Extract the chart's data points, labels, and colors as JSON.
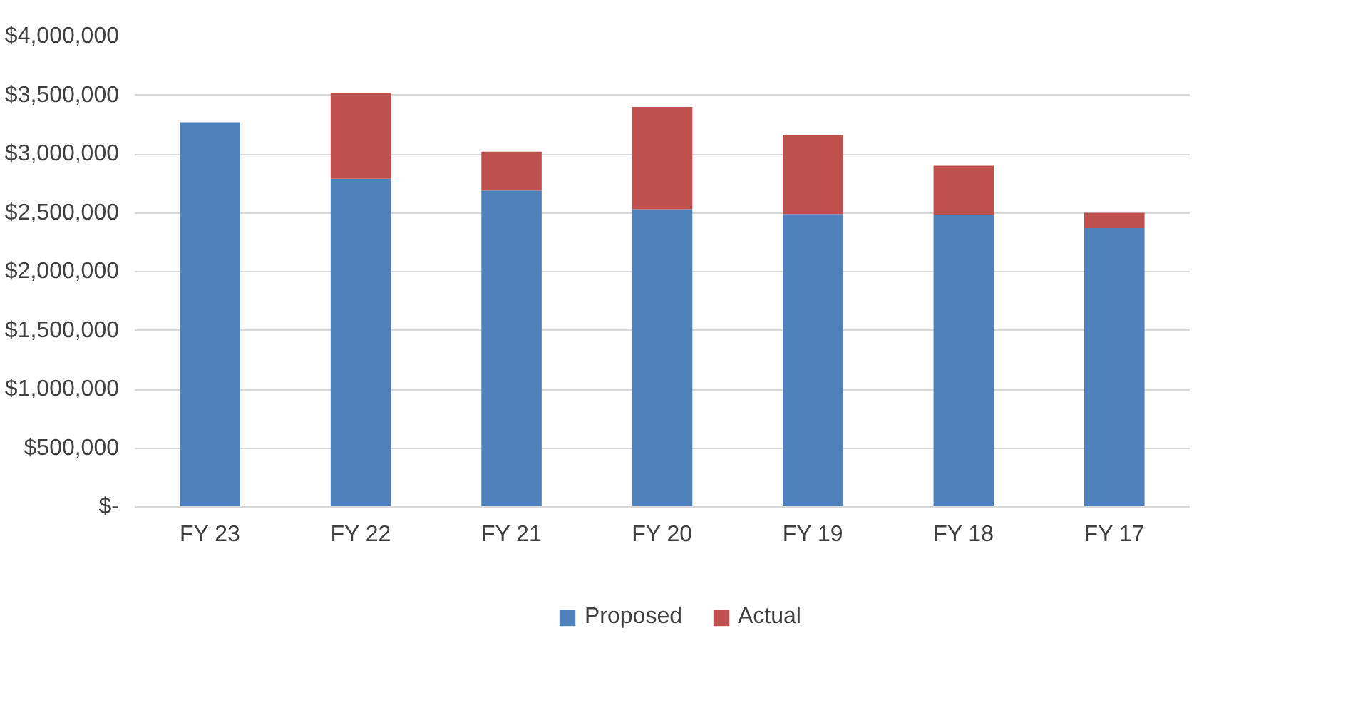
{
  "chart_data": {
    "type": "bar",
    "stacked": true,
    "categories": [
      "FY 23",
      "FY 22",
      "FY 21",
      "FY 20",
      "FY 19",
      "FY 18",
      "FY 17"
    ],
    "series": [
      {
        "name": "Proposed",
        "color": "#4f81bd",
        "values": [
          3270000,
          2790000,
          2690000,
          2530000,
          2490000,
          2480000,
          2370000
        ]
      },
      {
        "name": "Actual",
        "color": "#c0504d",
        "values": [
          0,
          730000,
          330000,
          870000,
          670000,
          420000,
          130000
        ]
      }
    ],
    "ylim": [
      0,
      4000000
    ],
    "yticks": [
      {
        "value": 0,
        "label": "$-"
      },
      {
        "value": 500000,
        "label": "$500,000"
      },
      {
        "value": 1000000,
        "label": "$1,000,000"
      },
      {
        "value": 1500000,
        "label": "$1,500,000"
      },
      {
        "value": 2000000,
        "label": "$2,000,000"
      },
      {
        "value": 2500000,
        "label": "$2,500,000"
      },
      {
        "value": 3000000,
        "label": "$3,000,000"
      },
      {
        "value": 3500000,
        "label": "$3,500,000"
      },
      {
        "value": 4000000,
        "label": "$4,000,000"
      }
    ],
    "grid": "y",
    "legend": "bottom"
  }
}
